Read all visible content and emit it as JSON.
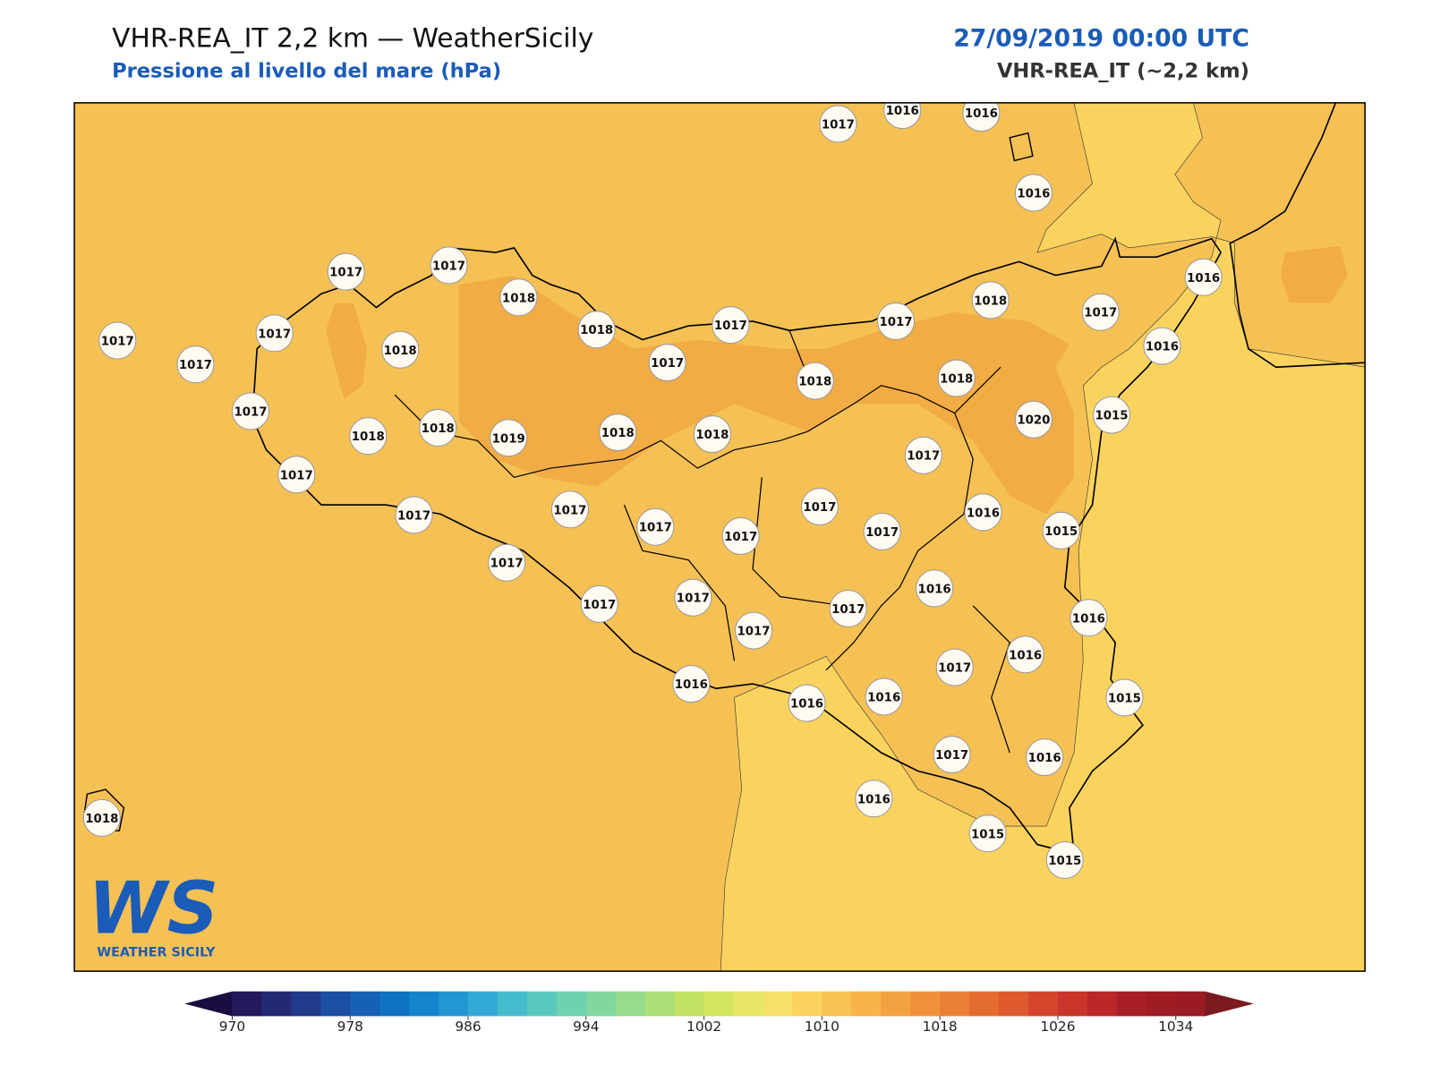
{
  "header": {
    "title": "VHR-REA_IT 2,2 km — WeatherSicily",
    "subtitle": "Pressione al livello del mare (hPa)",
    "datetime": "27/09/2019 00:00 UTC",
    "model": "VHR-REA_IT (~2,2 km)"
  },
  "stations": [
    1017,
    1016,
    1016,
    1016,
    1017,
    1017,
    1018,
    1018,
    1017,
    1017,
    1018,
    1017,
    1016,
    1017,
    1017,
    1018,
    1017,
    1017,
    1018,
    1018,
    1016,
    1017,
    1018,
    1018,
    1019,
    1018,
    1018,
    1020,
    1015,
    1017,
    1017,
    1017,
    1017,
    1017,
    1017,
    1017,
    1017,
    1016,
    1015,
    1017,
    1017,
    1017,
    1017,
    1017,
    1016,
    1016,
    1016,
    1017,
    1016,
    1016,
    1016,
    1015,
    1017,
    1016,
    1016,
    1015,
    1015,
    1018
  ],
  "colorbar": {
    "range": [
      970,
      1036
    ],
    "ticks": [
      970,
      978,
      986,
      994,
      1002,
      1010,
      1018,
      1026,
      1034
    ],
    "colors": [
      "#221a5c",
      "#232a73",
      "#213a8a",
      "#1c4ea3",
      "#1560b5",
      "#0f72c2",
      "#1485cc",
      "#2397d2",
      "#32aad5",
      "#45bccb",
      "#5ac8bf",
      "#6ed1b0",
      "#82d79e",
      "#97dc8c",
      "#acdf77",
      "#c2e264",
      "#d5e55f",
      "#e7e666",
      "#f7e06a",
      "#fbd25d",
      "#f8c352",
      "#f5b348",
      "#f2a240",
      "#ee913a",
      "#ea7f35",
      "#e56c31",
      "#de592e",
      "#d4462c",
      "#c9352b",
      "#bb2629",
      "#a81e27",
      "#a01c25",
      "#9a1b24"
    ],
    "under": "#1a0e40",
    "over": "#7b1b20"
  },
  "logo": {
    "mark": "WS",
    "text": "WEATHER SICILY"
  }
}
